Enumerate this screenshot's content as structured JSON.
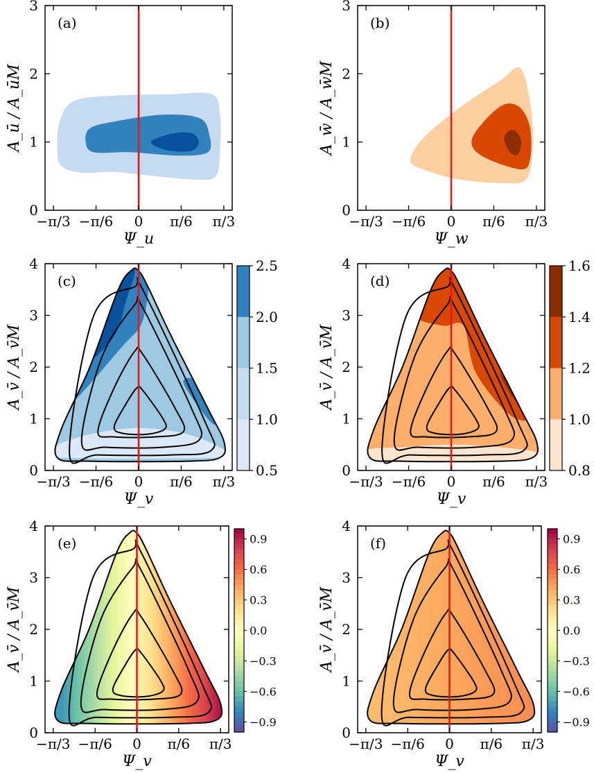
{
  "colors": {
    "blue_levels": [
      "#dbe9f6",
      "#c6dbef",
      "#9ecae1",
      "#6baed6",
      "#3182bd",
      "#08519c"
    ],
    "orange_levels": [
      "#fee6ce",
      "#fdd0a2",
      "#fdae6b",
      "#f16913",
      "#d94801",
      "#8c2d04"
    ],
    "diverging": [
      "#5e4fa2",
      "#3288bd",
      "#66c2a5",
      "#abdda4",
      "#e6f598",
      "#ffffbf",
      "#fee08b",
      "#fdae61",
      "#f46d43",
      "#d53e4f",
      "#9e0142"
    ],
    "reference_line": "#ee1111",
    "contour_line": "#000000"
  },
  "chart_data": [
    {
      "id": "a",
      "type": "contour",
      "panel_label": "(a)",
      "xlabel": "Ψ_u",
      "ylabel": "A_ū / A_ūM",
      "xlim": [
        -1.15,
        1.15
      ],
      "ylim": [
        0,
        3
      ],
      "xticks": [
        -1.0472,
        -0.5236,
        0,
        0.5236,
        1.0472
      ],
      "xtick_labels": [
        "−π/3",
        "−π/6",
        "0",
        "π/6",
        "π/3"
      ],
      "yticks": [
        0,
        1,
        2,
        3
      ],
      "ytick_labels": [
        "0",
        "1",
        "2",
        "3"
      ],
      "vertical_line_x": 0,
      "colormap": "blue",
      "filled_levels": [
        {
          "level": 1,
          "color_index": 1,
          "outline": [
            [
              -0.95,
              0.65
            ],
            [
              -0.7,
              0.55
            ],
            [
              -0.3,
              0.56
            ],
            [
              0.2,
              0.5
            ],
            [
              0.7,
              0.45
            ],
            [
              0.95,
              0.5
            ],
            [
              1.0,
              0.9
            ],
            [
              1.0,
              1.4
            ],
            [
              0.9,
              1.7
            ],
            [
              0.4,
              1.7
            ],
            [
              -0.3,
              1.68
            ],
            [
              -0.8,
              1.6
            ],
            [
              -0.97,
              1.3
            ],
            [
              -1.0,
              0.9
            ]
          ]
        },
        {
          "level": 2,
          "color_index": 4,
          "outline": [
            [
              -0.65,
              1.0
            ],
            [
              -0.55,
              0.85
            ],
            [
              -0.1,
              0.85
            ],
            [
              0.5,
              0.8
            ],
            [
              0.85,
              0.85
            ],
            [
              0.87,
              1.1
            ],
            [
              0.75,
              1.35
            ],
            [
              0.3,
              1.4
            ],
            [
              -0.3,
              1.3
            ],
            [
              -0.6,
              1.2
            ]
          ]
        },
        {
          "level": 3,
          "color_index": 5,
          "outline": [
            [
              0.15,
              1.0
            ],
            [
              0.35,
              0.88
            ],
            [
              0.65,
              0.87
            ],
            [
              0.74,
              1.0
            ],
            [
              0.65,
              1.13
            ],
            [
              0.4,
              1.12
            ]
          ]
        }
      ]
    },
    {
      "id": "b",
      "type": "contour",
      "panel_label": "(b)",
      "xlabel": "Ψ_w",
      "ylabel": "A_w̄ / A_w̄M",
      "xlim": [
        -1.15,
        1.15
      ],
      "ylim": [
        0,
        3
      ],
      "xticks": [
        -1.0472,
        -0.5236,
        0,
        0.5236,
        1.0472
      ],
      "xtick_labels": [
        "−π/3",
        "−π/6",
        "0",
        "π/6",
        "π/3"
      ],
      "yticks": [
        0,
        1,
        2,
        3
      ],
      "ytick_labels": [
        "0",
        "1",
        "2",
        "3"
      ],
      "vertical_line_x": 0,
      "colormap": "orange",
      "filled_levels": [
        {
          "level": 1,
          "color_index": 1,
          "outline": [
            [
              -0.5,
              0.72
            ],
            [
              -0.3,
              0.58
            ],
            [
              0.1,
              0.45
            ],
            [
              0.6,
              0.4
            ],
            [
              0.92,
              0.45
            ],
            [
              1.0,
              0.9
            ],
            [
              0.98,
              1.5
            ],
            [
              0.85,
              2.08
            ],
            [
              0.6,
              1.9
            ],
            [
              0.1,
              1.5
            ],
            [
              -0.35,
              1.05
            ]
          ]
        },
        {
          "level": 2,
          "color_index": 4,
          "outline": [
            [
              0.25,
              1.0
            ],
            [
              0.4,
              0.78
            ],
            [
              0.85,
              0.6
            ],
            [
              0.97,
              0.75
            ],
            [
              0.97,
              1.2
            ],
            [
              0.85,
              1.5
            ],
            [
              0.65,
              1.55
            ],
            [
              0.4,
              1.3
            ]
          ]
        },
        {
          "level": 3,
          "color_index": 5,
          "outline": [
            [
              0.65,
              1.05
            ],
            [
              0.72,
              0.85
            ],
            [
              0.82,
              0.82
            ],
            [
              0.86,
              1.0
            ],
            [
              0.8,
              1.15
            ],
            [
              0.72,
              1.17
            ]
          ]
        }
      ]
    },
    {
      "id": "c",
      "type": "contour",
      "panel_label": "(c)",
      "xlabel": "Ψ_v",
      "ylabel": "A_v̄ / A_v̄M",
      "xlim": [
        -1.15,
        1.15
      ],
      "ylim": [
        0,
        4
      ],
      "xticks": [
        -1.0472,
        -0.5236,
        0,
        0.5236,
        1.0472
      ],
      "xtick_labels": [
        "−π/3",
        "−π/6",
        "0",
        "π/6",
        "π/3"
      ],
      "yticks": [
        0,
        1,
        2,
        3,
        4
      ],
      "ytick_labels": [
        "0",
        "1",
        "2",
        "3",
        "4"
      ],
      "vertical_line_x": 0,
      "colormap": "blue",
      "colorbar": {
        "ticks": [
          "2.5",
          "2.0",
          "1.5",
          "1.0",
          "0.5"
        ],
        "bands": [
          5,
          4,
          2,
          1,
          0
        ]
      },
      "background_level": 2,
      "regions": [
        {
          "color_index": 0,
          "polygon": [
            [
              -1.0,
              0.25
            ],
            [
              1.0,
              0.25
            ],
            [
              1.05,
              0.4
            ],
            [
              0.6,
              0.7
            ],
            [
              0.0,
              0.82
            ],
            [
              -0.6,
              0.7
            ],
            [
              -1.05,
              0.45
            ]
          ]
        },
        {
          "color_index": 4,
          "polygon": [
            [
              -0.5,
              3.4
            ],
            [
              -0.25,
              3.85
            ],
            [
              0.1,
              3.8
            ],
            [
              0.05,
              2.9
            ],
            [
              -0.2,
              2.4
            ],
            [
              -0.9,
              1.2
            ],
            [
              -0.9,
              1.8
            ]
          ]
        },
        {
          "color_index": 5,
          "polygon": [
            [
              -0.3,
              3.85
            ],
            [
              -0.05,
              3.9
            ],
            [
              -0.15,
              3.3
            ],
            [
              -0.3,
              2.6
            ],
            [
              -0.7,
              1.9
            ],
            [
              -0.9,
              1.3
            ],
            [
              -0.85,
              2.0
            ]
          ]
        },
        {
          "color_index": 4,
          "polygon": [
            [
              0.55,
              1.7
            ],
            [
              0.85,
              1.0
            ],
            [
              0.95,
              0.95
            ],
            [
              0.75,
              1.7
            ]
          ]
        }
      ]
    },
    {
      "id": "d",
      "type": "contour",
      "panel_label": "(d)",
      "xlabel": "Ψ_v",
      "ylabel": "A_v̄ / A_v̄M",
      "xlim": [
        -1.15,
        1.15
      ],
      "ylim": [
        0,
        4
      ],
      "xticks": [
        -1.0472,
        -0.5236,
        0,
        0.5236,
        1.0472
      ],
      "xtick_labels": [
        "−π/3",
        "−π/6",
        "0",
        "π/6",
        "π/3"
      ],
      "yticks": [
        0,
        1,
        2,
        3,
        4
      ],
      "ytick_labels": [
        "0",
        "1",
        "2",
        "3",
        "4"
      ],
      "vertical_line_x": 0,
      "colormap": "orange",
      "colorbar": {
        "ticks": [
          "1.6",
          "1.4",
          "1.2",
          "1.0",
          "0.8"
        ],
        "bands": [
          5,
          4,
          2,
          1,
          0
        ]
      },
      "background_level": 2,
      "regions": [
        {
          "color_index": 0,
          "polygon": [
            [
              -1.0,
              0.2
            ],
            [
              1.0,
              0.2
            ],
            [
              1.05,
              0.35
            ],
            [
              0.6,
              0.45
            ],
            [
              0.0,
              0.5
            ],
            [
              -0.6,
              0.45
            ],
            [
              -1.05,
              0.4
            ]
          ]
        },
        {
          "color_index": 4,
          "polygon": [
            [
              -0.3,
              3.6
            ],
            [
              -0.05,
              3.9
            ],
            [
              0.15,
              3.6
            ],
            [
              0.55,
              2.5
            ],
            [
              0.85,
              1.5
            ],
            [
              0.95,
              1.0
            ],
            [
              0.7,
              1.1
            ],
            [
              0.3,
              1.9
            ],
            [
              0.15,
              2.8
            ],
            [
              -0.1,
              2.8
            ],
            [
              -0.45,
              3.0
            ]
          ]
        },
        {
          "color_index": 5,
          "polygon": [
            [
              0.6,
              1.9
            ],
            [
              0.9,
              1.2
            ],
            [
              0.95,
              1.05
            ],
            [
              0.72,
              1.5
            ]
          ]
        }
      ]
    },
    {
      "id": "e",
      "type": "contour",
      "panel_label": "(e)",
      "xlabel": "Ψ_v",
      "ylabel": "A_v̄ / A_v̄M",
      "xlim": [
        -1.15,
        1.15
      ],
      "ylim": [
        0,
        4
      ],
      "xticks": [
        -1.0472,
        -0.5236,
        0,
        0.5236,
        1.0472
      ],
      "xtick_labels": [
        "−π/3",
        "−π/6",
        "0",
        "π/6",
        "π/3"
      ],
      "yticks": [
        0,
        1,
        2,
        3,
        4
      ],
      "ytick_labels": [
        "0",
        "1",
        "2",
        "3",
        "4"
      ],
      "vertical_line_x": 0,
      "colormap": "diverging",
      "colorbar": {
        "ticks": [
          "0.9",
          "0.6",
          "0.3",
          "0.0",
          "−0.3",
          "−0.6",
          "−0.9"
        ],
        "range": [
          -1.0,
          1.0
        ]
      },
      "field": "antisymmetric_x"
    },
    {
      "id": "f",
      "type": "contour",
      "panel_label": "(f)",
      "xlabel": "Ψ_v",
      "ylabel": "A_v̄ / A_v̄M",
      "xlim": [
        -1.15,
        1.15
      ],
      "ylim": [
        0,
        4
      ],
      "xticks": [
        -1.0472,
        -0.5236,
        0,
        0.5236,
        1.0472
      ],
      "xtick_labels": [
        "−π/3",
        "−π/6",
        "0",
        "π/6",
        "π/3"
      ],
      "yticks": [
        0,
        1,
        2,
        3,
        4
      ],
      "ytick_labels": [
        "0",
        "1",
        "2",
        "3",
        "4"
      ],
      "vertical_line_x": 0,
      "colormap": "diverging",
      "colorbar": {
        "ticks": [
          "0.9",
          "0.6",
          "0.3",
          "0.0",
          "−0.3",
          "−0.6",
          "−0.9"
        ],
        "range": [
          -1.0,
          1.0
        ]
      },
      "field": "mostly_positive"
    }
  ],
  "shared_triangle": {
    "outline": [
      [
        -1.0,
        0.25
      ],
      [
        -0.95,
        0.8
      ],
      [
        -0.6,
        2.0
      ],
      [
        -0.25,
        3.5
      ],
      [
        -0.08,
        3.88
      ],
      [
        0.0,
        3.86
      ],
      [
        0.1,
        3.6
      ],
      [
        0.4,
        2.6
      ],
      [
        0.85,
        1.2
      ],
      [
        1.05,
        0.55
      ],
      [
        1.0,
        0.25
      ],
      [
        0.6,
        0.18
      ],
      [
        -0.6,
        0.18
      ]
    ],
    "contours": [
      [
        [
          -0.85,
          0.35
        ],
        [
          -0.55,
          3.0
        ],
        [
          -0.05,
          3.55
        ],
        [
          0.05,
          3.5
        ],
        [
          0.8,
          1.0
        ],
        [
          0.9,
          0.4
        ],
        [
          0.4,
          0.3
        ],
        [
          -0.5,
          0.3
        ]
      ],
      [
        [
          -0.7,
          0.55
        ],
        [
          -0.45,
          2.2
        ],
        [
          -0.05,
          3.2
        ],
        [
          0.05,
          3.15
        ],
        [
          0.65,
          1.2
        ],
        [
          0.75,
          0.6
        ],
        [
          0.3,
          0.45
        ],
        [
          -0.4,
          0.45
        ]
      ],
      [
        [
          -0.5,
          0.75
        ],
        [
          -0.3,
          1.6
        ],
        [
          -0.05,
          2.3
        ],
        [
          0.05,
          2.25
        ],
        [
          0.45,
          1.2
        ],
        [
          0.55,
          0.75
        ],
        [
          0.2,
          0.65
        ],
        [
          -0.3,
          0.65
        ]
      ],
      [
        [
          -0.3,
          0.85
        ],
        [
          -0.15,
          1.3
        ],
        [
          -0.02,
          1.6
        ],
        [
          0.05,
          1.55
        ],
        [
          0.3,
          1.0
        ],
        [
          0.32,
          0.8
        ],
        [
          0.1,
          0.7
        ],
        [
          -0.2,
          0.72
        ]
      ]
    ]
  }
}
